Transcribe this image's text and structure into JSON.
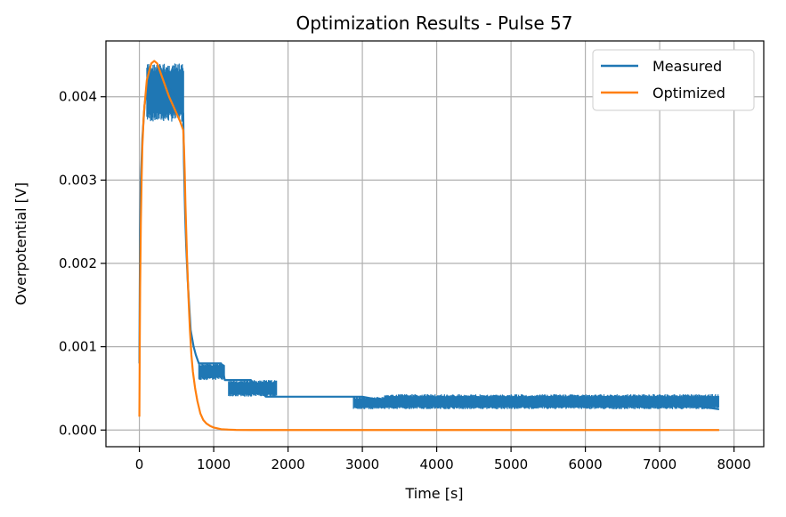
{
  "chart_data": {
    "type": "line",
    "title": "Optimization Results - Pulse 57",
    "xlabel": "Time [s]",
    "ylabel": "Overpotential [V]",
    "xlim": [
      -450,
      8400
    ],
    "ylim": [
      -0.0002,
      0.00467
    ],
    "xticks": [
      0,
      1000,
      2000,
      3000,
      4000,
      5000,
      6000,
      7000,
      8000
    ],
    "xtick_labels": [
      "0",
      "1000",
      "2000",
      "3000",
      "4000",
      "5000",
      "6000",
      "7000",
      "8000"
    ],
    "yticks": [
      0.0,
      0.001,
      0.002,
      0.003,
      0.004
    ],
    "ytick_labels": [
      "0.000",
      "0.001",
      "0.002",
      "0.003",
      "0.004"
    ],
    "grid": true,
    "legend_position": "top-right",
    "series": [
      {
        "name": "Measured",
        "color": "#1f77b4",
        "x": [
          0,
          5,
          10,
          20,
          40,
          70,
          100,
          140,
          180,
          220,
          260,
          300,
          350,
          400,
          450,
          500,
          550,
          590,
          600,
          615,
          630,
          650,
          670,
          690,
          710,
          730,
          760,
          800,
          900,
          1000,
          1100,
          1150,
          1200,
          1300,
          1400,
          1500,
          1600,
          1700,
          1800,
          2000,
          2500,
          2900,
          3000,
          3300,
          4000,
          5000,
          6000,
          7000,
          7800
        ],
        "y": [
          0.0008,
          0.0017,
          0.0024,
          0.003,
          0.0035,
          0.0039,
          0.0041,
          0.00425,
          0.0043,
          0.0043,
          0.00425,
          0.0042,
          0.00415,
          0.0041,
          0.00405,
          0.004,
          0.0039,
          0.0038,
          0.0032,
          0.0026,
          0.0022,
          0.0018,
          0.0015,
          0.0012,
          0.0011,
          0.001,
          0.0009,
          0.0008,
          0.0008,
          0.0008,
          0.0008,
          0.0006,
          0.0006,
          0.0006,
          0.0006,
          0.0006,
          0.0005,
          0.0004,
          0.0004,
          0.0004,
          0.0004,
          0.0004,
          0.0004,
          0.00035,
          0.00035,
          0.00035,
          0.00035,
          0.00035,
          0.00025
        ],
        "noise_bands": [
          {
            "x_start": 100,
            "x_end": 600,
            "y_low": 0.0037,
            "y_high": 0.0044
          },
          {
            "x_start": 800,
            "x_end": 1150,
            "y_low": 0.0006,
            "y_high": 0.0008
          },
          {
            "x_start": 1200,
            "x_end": 1850,
            "y_low": 0.0004,
            "y_high": 0.0006
          },
          {
            "x_start": 2880,
            "x_end": 3300,
            "y_low": 0.00025,
            "y_high": 0.0004
          },
          {
            "x_start": 3300,
            "x_end": 7800,
            "y_low": 0.00025,
            "y_high": 0.00043
          }
        ]
      },
      {
        "name": "Optimized",
        "color": "#ff7f0e",
        "x": [
          0,
          5,
          10,
          20,
          30,
          40,
          60,
          80,
          100,
          130,
          160,
          200,
          240,
          280,
          320,
          360,
          400,
          450,
          500,
          550,
          590,
          600,
          610,
          620,
          640,
          660,
          680,
          700,
          720,
          750,
          780,
          820,
          860,
          900,
          950,
          1000,
          1100,
          1200,
          1300,
          1500,
          2000,
          3000,
          5000,
          7800
        ],
        "y": [
          0.00016,
          0.001,
          0.0017,
          0.0025,
          0.003,
          0.0034,
          0.0038,
          0.004,
          0.0042,
          0.0043,
          0.0044,
          0.00443,
          0.0044,
          0.0043,
          0.0042,
          0.0041,
          0.004,
          0.0039,
          0.0038,
          0.0037,
          0.0036,
          0.0034,
          0.0031,
          0.0027,
          0.0021,
          0.0016,
          0.0012,
          0.0009,
          0.0007,
          0.0005,
          0.00035,
          0.0002,
          0.00012,
          8e-05,
          5e-05,
          3e-05,
          1e-05,
          5e-06,
          2e-06,
          0.0,
          0.0,
          0.0,
          0.0,
          0.0
        ]
      }
    ]
  }
}
